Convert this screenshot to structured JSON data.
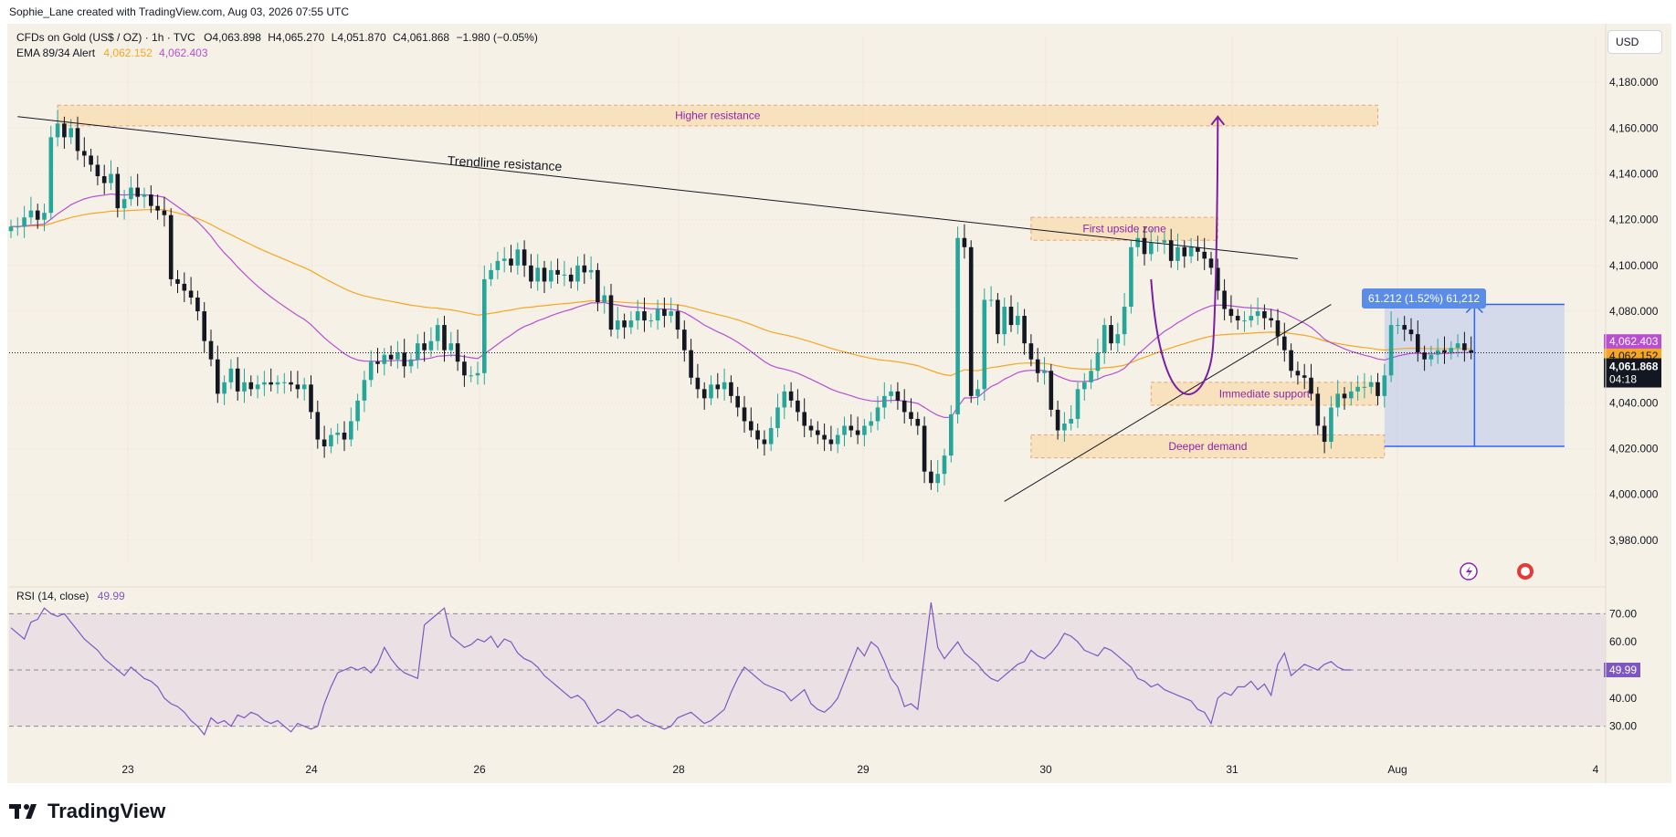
{
  "header": {
    "attribution": "Sophie_Lane created with TradingView.com, Aug 03, 2026 07:55 UTC"
  },
  "legend": {
    "symbol": "CFDs on Gold (US$ / OZ) · 1h · TVC",
    "open": "O4,063.898",
    "high": "H4,065.270",
    "low": "L4,051.870",
    "close": "C4,061.868",
    "change": "−1.980 (−0.05%)",
    "ema_label": "EMA 89/34 Alert",
    "ema89_value": "4,062.152",
    "ema34_value": "4,062.403",
    "rsi_label": "RSI (14, close)",
    "rsi_value": "49.99"
  },
  "currency_button": "USD",
  "brand": "TradingView",
  "colors": {
    "bull": "#26a69a",
    "bear": "#131722",
    "ema89": "#f5a623",
    "ema34": "#b74fd0",
    "rsi": "#7e57c2",
    "zone_fill": "#f8dcb0",
    "zone_text": "#8e24aa",
    "measure": "#2962ff"
  },
  "chart_data": {
    "type": "candlestick",
    "title": "CFDs on Gold (US$ / OZ) · 1h · TVC",
    "y_axis": {
      "min": 3970,
      "max": 4200,
      "ticks": [
        "4,180.000",
        "4,160.000",
        "4,140.000",
        "4,120.000",
        "4,100.000",
        "4,080.000",
        "4,060.000",
        "4,040.000",
        "4,020.000",
        "4,000.000",
        "3,980.000"
      ]
    },
    "x_axis": {
      "ticks": [
        "23",
        "24",
        "26",
        "28",
        "29",
        "30",
        "31",
        "Aug",
        "4"
      ]
    },
    "closes": [
      4117,
      4117,
      4121,
      4124,
      4120,
      4123,
      4156,
      4162,
      4156,
      4160,
      4150,
      4148,
      4144,
      4139,
      4136,
      4140,
      4125,
      4129,
      4134,
      4130,
      4131,
      4126,
      4124,
      4122,
      4094,
      4092,
      4089,
      4086,
      4080,
      4067,
      4059,
      4044,
      4049,
      4055,
      4045,
      4049,
      4046,
      4048,
      4049,
      4048,
      4049,
      4049,
      4048,
      4046,
      4048,
      4036,
      4024,
      4021,
      4026,
      4027,
      4024,
      4032,
      4041,
      4050,
      4058,
      4057,
      4061,
      4059,
      4062,
      4056,
      4059,
      4066,
      4063,
      4067,
      4074,
      4063,
      4066,
      4058,
      4052,
      4052,
      4053,
      4094,
      4098,
      4102,
      4103,
      4100,
      4107,
      4100,
      4093,
      4099,
      4093,
      4098,
      4096,
      4096,
      4093,
      4100,
      4097,
      4098,
      4084,
      4087,
      4072,
      4076,
      4073,
      4076,
      4080,
      4076,
      4076,
      4081,
      4078,
      4080,
      4072,
      4063,
      4051,
      4046,
      4042,
      4048,
      4046,
      4049,
      4043,
      4038,
      4032,
      4028,
      4024,
      4022,
      4029,
      4038,
      4045,
      4041,
      4036,
      4030,
      4028,
      4026,
      4024,
      4022,
      4026,
      4030,
      4028,
      4026,
      4030,
      4032,
      4038,
      4043,
      4045,
      4041,
      4036,
      4033,
      4030,
      4010,
      4005,
      4009,
      4017,
      4035,
      4112,
      4108,
      4043,
      4046,
      4085,
      4085,
      4070,
      4082,
      4074,
      4078,
      4066,
      4059,
      4053,
      4054,
      4037,
      4028,
      4031,
      4033,
      4046,
      4049,
      4054,
      4062,
      4074,
      4066,
      4070,
      4082,
      4108,
      4112,
      4105,
      4110,
      4110,
      4111,
      4102,
      4108,
      4104,
      4108,
      4106,
      4103,
      4099,
      4089,
      4081,
      4078,
      4076,
      4076,
      4078,
      4080,
      4077,
      4076,
      4069,
      4063,
      4054,
      4052,
      4051,
      4044,
      4030,
      4023,
      4038,
      4044,
      4042,
      4045,
      4047,
      4047,
      4049,
      4043,
      4052,
      4074,
      4074,
      4072,
      4070,
      4062,
      4059,
      4061,
      4063,
      4062,
      4064,
      4066,
      4063,
      4062
    ],
    "ema89_series": "EMA 89",
    "ema34_series": "EMA 34",
    "last_price": "4,061.868",
    "countdown": "04:18",
    "trendlines": [
      {
        "label": "Trendline resistance",
        "from": [
          1,
          4165
        ],
        "to": [
          193,
          4103
        ]
      },
      {
        "label": "",
        "from": [
          149,
          3997
        ],
        "to": [
          198,
          4083
        ]
      }
    ],
    "zones": [
      {
        "label": "Higher resistance",
        "start": 7,
        "end": 205,
        "y1": 4161,
        "y2": 4170
      },
      {
        "label": "First upside zone",
        "start": 153,
        "end": 181,
        "y1": 4111,
        "y2": 4121
      },
      {
        "label": "Immediate support",
        "start": 171,
        "end": 205,
        "y1": 4039,
        "y2": 4049
      },
      {
        "label": "Deeper demand",
        "start": 153,
        "end": 206,
        "y1": 4016,
        "y2": 4026
      }
    ],
    "measure": {
      "label": "61.212 (1.52%) 61,212",
      "start": 206,
      "end": 233,
      "low": 4021,
      "high": 4083
    },
    "projection_peak": 4165,
    "rsi": {
      "label": "RSI (14, close)",
      "value": 49.99,
      "levels": [
        70,
        50,
        30
      ],
      "ticks": [
        "70.00",
        "60.00",
        "50.00",
        "40.00",
        "30.00"
      ],
      "min": 26,
      "max": 74,
      "values": [
        65,
        63,
        61,
        67,
        68,
        72,
        70,
        69,
        70,
        67,
        64,
        61,
        59,
        57,
        54,
        52,
        50,
        48,
        51,
        49,
        47,
        46,
        44,
        40,
        38,
        37,
        35,
        32,
        30,
        27,
        33,
        31,
        32,
        30,
        34,
        33,
        35,
        34,
        32,
        31,
        32,
        30,
        28,
        31,
        30,
        29,
        30,
        38,
        44,
        49,
        50,
        51,
        50,
        51,
        49,
        52,
        58,
        54,
        51,
        49,
        48,
        47,
        66,
        68,
        70,
        72,
        62,
        60,
        58,
        59,
        61,
        60,
        62,
        58,
        61,
        60,
        56,
        54,
        53,
        51,
        48,
        46,
        44,
        42,
        40,
        41,
        39,
        35,
        31,
        32,
        34,
        36,
        35,
        33,
        34,
        32,
        31,
        30,
        29,
        30,
        33,
        34,
        35,
        33,
        31,
        32,
        34,
        36,
        42,
        47,
        51,
        49,
        47,
        45,
        44,
        43,
        42,
        39,
        41,
        43,
        38,
        36,
        35,
        37,
        40,
        46,
        52,
        58,
        55,
        60,
        58,
        53,
        47,
        44,
        37,
        38,
        36,
        55,
        74,
        58,
        54,
        57,
        60,
        56,
        54,
        52,
        49,
        47,
        46,
        48,
        50,
        52,
        53,
        57,
        55,
        54,
        56,
        59,
        63,
        62,
        60,
        57,
        56,
        55,
        58,
        57,
        55,
        53,
        51,
        47,
        46,
        44,
        45,
        43,
        42,
        41,
        40,
        39,
        36,
        35,
        31,
        40,
        42,
        41,
        44,
        44,
        46,
        43,
        45,
        41,
        52,
        56,
        48,
        50,
        52,
        51,
        50,
        52,
        53,
        51,
        50,
        50
      ]
    }
  }
}
